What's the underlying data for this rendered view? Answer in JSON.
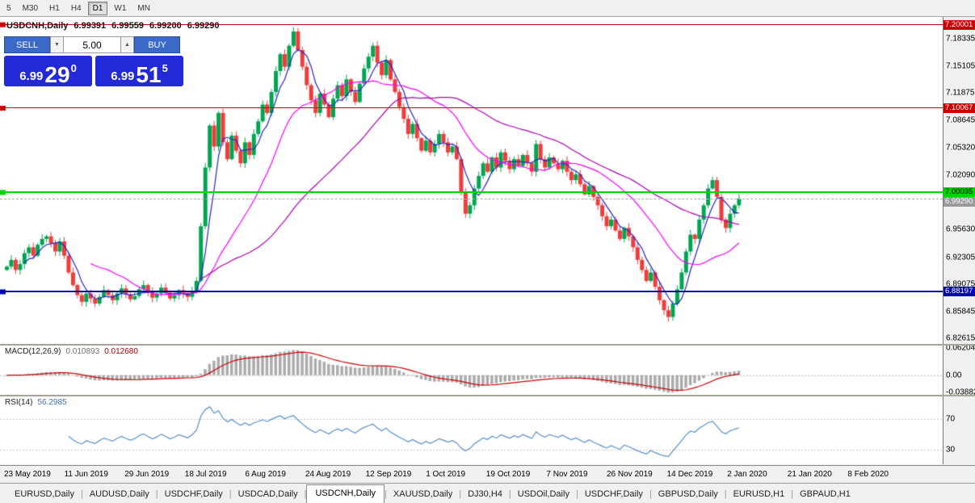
{
  "colors": {
    "up": "#00a651",
    "down": "#f23b3b",
    "ma_fast": "#2323c8",
    "ma_mid": "#ff00ff",
    "ma_slow": "#b000b0",
    "macd_hist": "#ababab",
    "macd_signal": "#cc0000",
    "rsi_line": "#5a8fc8",
    "button_blue": "#3a69c7",
    "price_box_blue": "#2329d6"
  },
  "toolbar": {
    "timeframes": [
      "5",
      "M30",
      "H1",
      "H4",
      "D1",
      "W1",
      "MN"
    ],
    "active": "D1"
  },
  "chart_title": {
    "symbol_period": "USDCNH,Daily",
    "open": "6.99391",
    "high": "6.99559",
    "low": "6.99200",
    "close": "6.99290"
  },
  "trade_panel": {
    "sell_label": "SELL",
    "buy_label": "BUY",
    "volume": "5.00",
    "volume_down_glyph": "▼",
    "volume_up_glyph": "▲",
    "sell_price": {
      "main": "6.99",
      "big": "29",
      "sup": "0"
    },
    "buy_price": {
      "main": "6.99",
      "big": "51",
      "sup": "5"
    }
  },
  "tabs": {
    "items": [
      "EURUSD,Daily",
      "AUDUSD,Daily",
      "USDCHF,Daily",
      "USDCAD,Daily",
      "USDCNH,Daily",
      "XAUUSD,Daily",
      "DJ30,H4",
      "USDOil,Daily",
      "USDCHF,Daily",
      "GBPUSD,Daily",
      "EURUSD,H1",
      "GBPAUD,H1"
    ],
    "active_index": 4
  },
  "chart_data": {
    "type": "candlestick",
    "symbol": "USDCNH",
    "timeframe": "Daily",
    "ohlc_display": {
      "open": 6.99391,
      "high": 6.99559,
      "low": 6.992,
      "close": 6.9929
    },
    "x_labels": [
      "23 May 2019",
      "11 Jun 2019",
      "29 Jun 2019",
      "18 Jul 2019",
      "6 Aug 2019",
      "24 Aug 2019",
      "12 Sep 2019",
      "1 Oct 2019",
      "19 Oct 2019",
      "7 Nov 2019",
      "26 Nov 2019",
      "14 Dec 2019",
      "2 Jan 2020",
      "21 Jan 2020",
      "8 Feb 2020"
    ],
    "y_axis_labels": [
      "7.18335",
      "7.15105",
      "7.11875",
      "7.08645",
      "7.05320",
      "7.02090",
      "6.95630",
      "6.92305",
      "6.89075",
      "6.85845",
      "6.82615"
    ],
    "ylim": [
      6.8199,
      7.2093
    ],
    "closes": [
      6.912,
      6.92,
      6.908,
      6.915,
      6.928,
      6.935,
      6.925,
      6.938,
      6.945,
      6.948,
      6.94,
      6.93,
      6.942,
      6.925,
      6.905,
      6.89,
      6.878,
      6.87,
      6.88,
      6.874,
      6.868,
      6.876,
      6.884,
      6.878,
      6.872,
      6.88,
      6.886,
      6.879,
      6.873,
      6.877,
      6.885,
      6.89,
      6.882,
      6.875,
      6.88,
      6.887,
      6.881,
      6.874,
      6.878,
      6.884,
      6.88,
      6.876,
      6.883,
      6.895,
      6.96,
      7.03,
      7.08,
      7.055,
      7.095,
      7.06,
      7.04,
      7.068,
      7.05,
      7.035,
      7.06,
      7.045,
      7.07,
      7.085,
      7.105,
      7.095,
      7.12,
      7.145,
      7.165,
      7.15,
      7.175,
      7.192,
      7.17,
      7.15,
      7.128,
      7.11,
      7.095,
      7.118,
      7.105,
      7.09,
      7.112,
      7.128,
      7.115,
      7.135,
      7.12,
      7.108,
      7.13,
      7.148,
      7.162,
      7.175,
      7.155,
      7.14,
      7.158,
      7.135,
      7.12,
      7.102,
      7.088,
      7.07,
      7.082,
      7.065,
      7.05,
      7.062,
      7.048,
      7.058,
      7.07,
      7.06,
      7.048,
      7.055,
      7.04,
      7.0,
      6.975,
      6.985,
      7.005,
      7.02,
      7.035,
      7.025,
      7.042,
      7.03,
      7.048,
      7.038,
      7.028,
      7.04,
      7.032,
      7.045,
      7.035,
      7.025,
      7.058,
      7.04,
      7.03,
      7.042,
      7.035,
      7.028,
      7.038,
      7.025,
      7.015,
      7.022,
      7.01,
      6.998,
      7.008,
      6.995,
      6.985,
      6.972,
      6.96,
      6.968,
      6.955,
      6.945,
      6.958,
      6.948,
      6.935,
      6.92,
      6.908,
      6.895,
      6.905,
      6.888,
      6.872,
      6.86,
      6.852,
      6.868,
      6.885,
      6.905,
      6.93,
      6.95,
      6.945,
      6.968,
      6.985,
      7.005,
      7.015,
      6.995,
      6.968,
      6.958,
      6.975,
      6.985,
      6.993
    ],
    "price_lines": [
      {
        "price": 7.20001,
        "label": "7.20001",
        "color": "#cc0000",
        "text_color": "#ffffff",
        "thickness": 1
      },
      {
        "price": 7.10067,
        "label": "7.10067",
        "color": "#cc0000",
        "text_color": "#ffffff",
        "thickness": 1
      },
      {
        "price": 7.00035,
        "label": "7.00035",
        "color": "#00d300",
        "text_color": "#000000",
        "thickness": 2
      },
      {
        "price": 6.88197,
        "label": "6.88197",
        "color": "#0000b3",
        "text_color": "#ffffff",
        "thickness": 2
      }
    ],
    "current_price": {
      "value": 6.9929,
      "label": "6.99290",
      "color": "#9a9a9a",
      "text_color": "#ffffff"
    },
    "moving_averages": [
      {
        "period": 5,
        "color_key": "ma_fast"
      },
      {
        "period": 20,
        "color_key": "ma_mid"
      },
      {
        "period": 45,
        "color_key": "ma_slow"
      }
    ],
    "indicators": {
      "macd": {
        "label": "MACD(12,26,9)",
        "fast": 12,
        "slow": 26,
        "signal": 9,
        "value_main": "0.010893",
        "value_signal": "0.012680",
        "axis_labels": [
          "0.06204",
          "0.00",
          "-0.03882"
        ],
        "y_range": [
          0.068,
          -0.045
        ]
      },
      "rsi": {
        "label": "RSI(14)",
        "period": 14,
        "display_value": "56.2985",
        "levels": [
          70,
          30
        ],
        "axis_labels": [
          "70",
          "30"
        ]
      }
    }
  }
}
